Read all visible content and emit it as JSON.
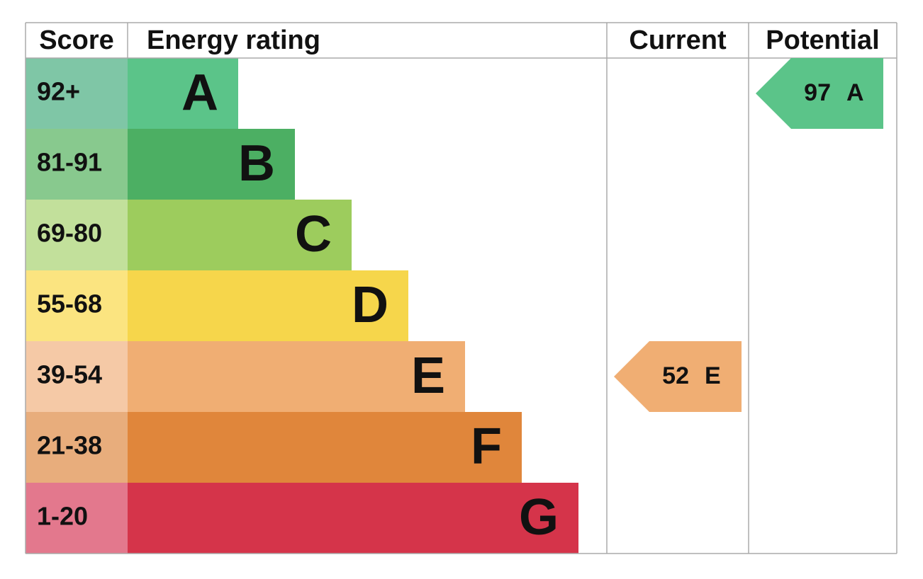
{
  "header": {
    "score": "Score",
    "rating": "Energy rating",
    "current": "Current",
    "potential": "Potential"
  },
  "bands": [
    {
      "score": "92+",
      "letter": "A",
      "color": "#5bc489",
      "score_color": "#7fc6a6"
    },
    {
      "score": "81-91",
      "letter": "B",
      "color": "#4caf63",
      "score_color": "#88c98e"
    },
    {
      "score": "69-80",
      "letter": "C",
      "color": "#9dcc5d",
      "score_color": "#c2e09b"
    },
    {
      "score": "55-68",
      "letter": "D",
      "color": "#f6d64b",
      "score_color": "#fbe480"
    },
    {
      "score": "39-54",
      "letter": "E",
      "color": "#f0ae73",
      "score_color": "#f5c9a6"
    },
    {
      "score": "21-38",
      "letter": "F",
      "color": "#e0863b",
      "score_color": "#e8ad7c"
    },
    {
      "score": "1-20",
      "letter": "G",
      "color": "#d5344a",
      "score_color": "#e3788d"
    }
  ],
  "current": {
    "value": 52,
    "letter": "E"
  },
  "potential": {
    "value": 97,
    "letter": "A"
  }
}
